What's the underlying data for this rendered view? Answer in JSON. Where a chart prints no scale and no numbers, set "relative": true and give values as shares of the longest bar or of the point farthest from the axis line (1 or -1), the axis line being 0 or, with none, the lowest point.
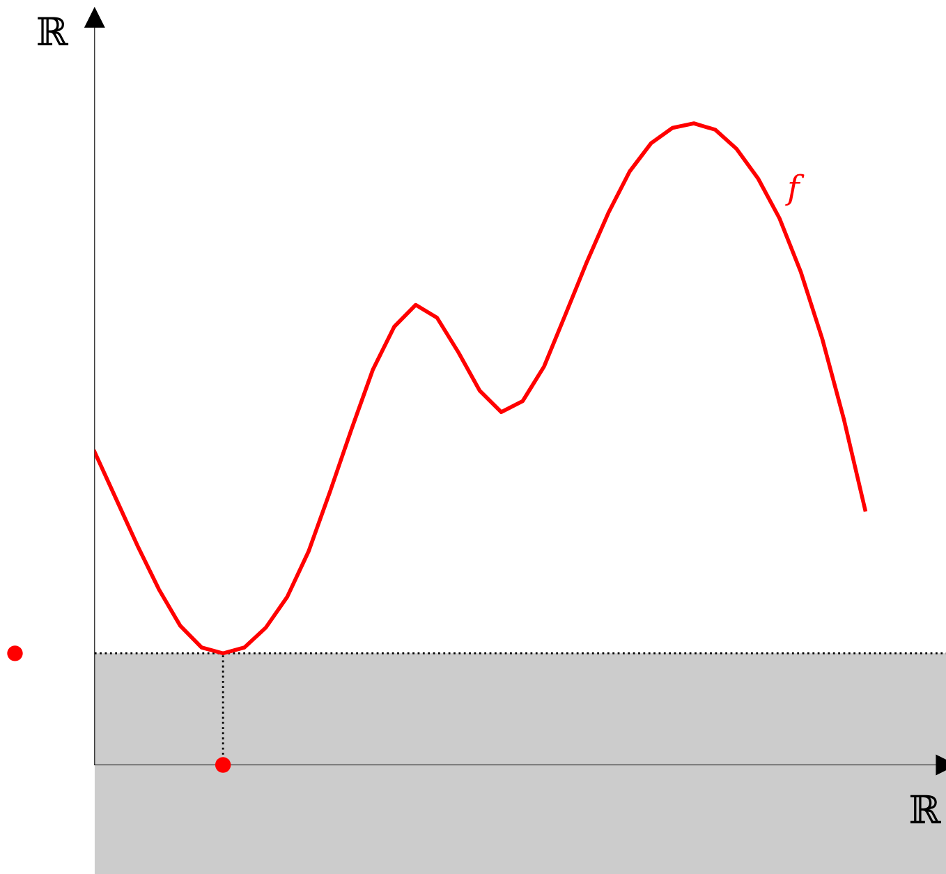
{
  "chart_data": {
    "type": "line",
    "relative": true,
    "xlabel": "ℝ",
    "ylabel": "ℝ",
    "categories": [
      null,
      null,
      null,
      null,
      null,
      null,
      null,
      null,
      null,
      null,
      null,
      null,
      null,
      null,
      null,
      null,
      null,
      null,
      null,
      null,
      null,
      null,
      null,
      null,
      null,
      null,
      null,
      null,
      null,
      null,
      null,
      null,
      null,
      null,
      null,
      null,
      null
    ],
    "series": [
      {
        "name": "f",
        "color": "#ff0000",
        "values": [
          0.488,
          0.415,
          0.342,
          0.274,
          0.217,
          0.183,
          0.174,
          0.183,
          0.214,
          0.262,
          0.333,
          0.426,
          0.523,
          0.616,
          0.683,
          0.717,
          0.697,
          0.643,
          0.583,
          0.55,
          0.567,
          0.621,
          0.702,
          0.784,
          0.86,
          0.925,
          0.969,
          0.993,
          1,
          0.99,
          0.96,
          0.914,
          0.852,
          0.768,
          0.664,
          0.54,
          0.398
        ]
      }
    ],
    "ref_lines": [
      {
        "axis": "y",
        "value": 0.174,
        "color": "#000000",
        "line_style": "dotted"
      }
    ]
  }
}
